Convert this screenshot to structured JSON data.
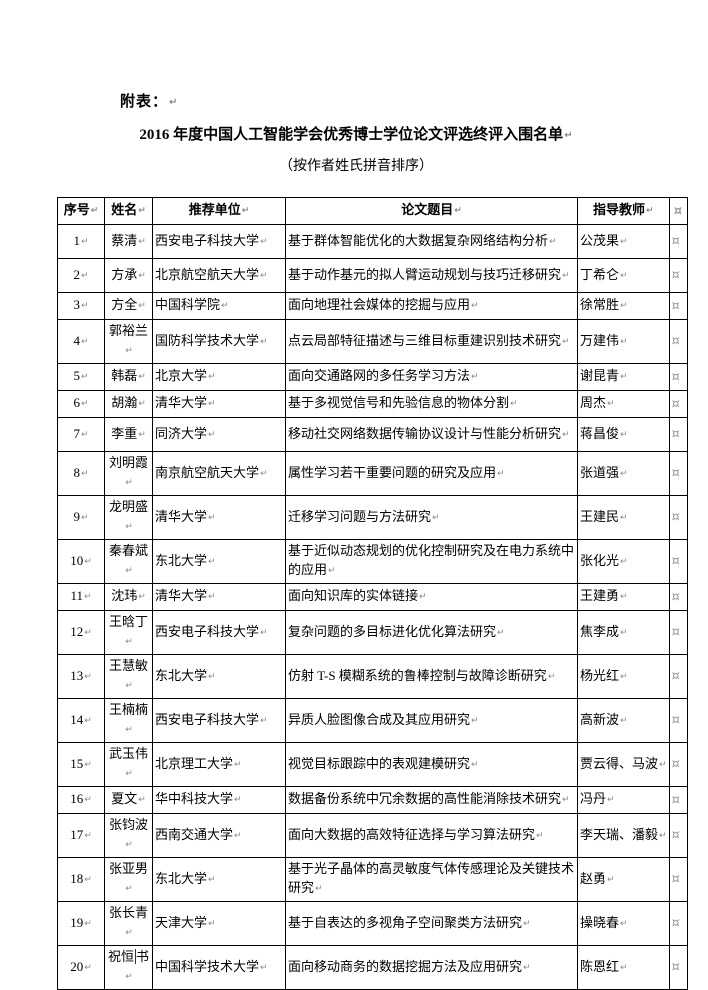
{
  "page": {
    "appendix_label": "附表：",
    "title": "2016 年度中国人工智能学会优秀博士学位论文评选终评入围名单",
    "subtitle": "（按作者姓氏拼音排序）"
  },
  "marks": {
    "pilcrow": "↵",
    "row_end": "¤"
  },
  "table": {
    "columns": [
      "序号",
      "姓名",
      "推荐单位",
      "论文题目",
      "指导教师"
    ],
    "rows": [
      {
        "no": "1",
        "name": "蔡清",
        "unit": "西安电子科技大学",
        "title": "基于群体智能优化的大数据复杂网络结构分析",
        "advisor": "公茂果"
      },
      {
        "no": "2",
        "name": "方承",
        "unit": "北京航空航天大学",
        "title": "基于动作基元的拟人臂运动规划与技巧迁移研究",
        "advisor": "丁希仑"
      },
      {
        "no": "3",
        "name": "方全",
        "unit": "中国科学院",
        "title": "面向地理社会媒体的挖掘与应用",
        "advisor": "徐常胜"
      },
      {
        "no": "4",
        "name": "郭裕兰",
        "unit": "国防科学技术大学",
        "title": "点云局部特征描述与三维目标重建识别技术研究",
        "advisor": "万建伟"
      },
      {
        "no": "5",
        "name": "韩磊",
        "unit": "北京大学",
        "title": "面向交通路网的多任务学习方法",
        "advisor": "谢昆青"
      },
      {
        "no": "6",
        "name": "胡瀚",
        "unit": "清华大学",
        "title": "基于多视觉信号和先验信息的物体分割",
        "advisor": "周杰"
      },
      {
        "no": "7",
        "name": "李重",
        "unit": "同济大学",
        "title": "移动社交网络数据传输协议设计与性能分析研究",
        "advisor": "蒋昌俊"
      },
      {
        "no": "8",
        "name": "刘明霞",
        "unit": "南京航空航天大学",
        "title": "属性学习若干重要问题的研究及应用",
        "advisor": "张道强"
      },
      {
        "no": "9",
        "name": "龙明盛",
        "unit": "清华大学",
        "title": "迁移学习问题与方法研究",
        "advisor": "王建民"
      },
      {
        "no": "10",
        "name": "秦春斌",
        "unit": "东北大学",
        "title": "基于近似动态规划的优化控制研究及在电力系统中的应用",
        "advisor": "张化光"
      },
      {
        "no": "11",
        "name": "沈玮",
        "unit": "清华大学",
        "title": "面向知识库的实体链接",
        "advisor": "王建勇"
      },
      {
        "no": "12",
        "name": "王晗丁",
        "unit": "西安电子科技大学",
        "title": "复杂问题的多目标进化优化算法研究",
        "advisor": "焦李成"
      },
      {
        "no": "13",
        "name": "王慧敏",
        "unit": "东北大学",
        "title": "仿射 T-S 模糊系统的鲁棒控制与故障诊断研究",
        "advisor": "杨光红"
      },
      {
        "no": "14",
        "name": "王楠楠",
        "unit": "西安电子科技大学",
        "title": "异质人脸图像合成及其应用研究",
        "advisor": "高新波"
      },
      {
        "no": "15",
        "name": "武玉伟",
        "unit": "北京理工大学",
        "title": "视觉目标跟踪中的表观建模研究",
        "advisor": "贾云得、马波"
      },
      {
        "no": "16",
        "name": "夏文",
        "unit": "华中科技大学",
        "title": "数据备份系统中冗余数据的高性能消除技术研究",
        "advisor": "冯丹"
      },
      {
        "no": "17",
        "name": "张钧波",
        "unit": "西南交通大学",
        "title": "面向大数据的高效特征选择与学习算法研究",
        "advisor": "李天瑞、潘毅"
      },
      {
        "no": "18",
        "name": "张亚男",
        "unit": "东北大学",
        "title": "基于光子晶体的高灵敏度气体传感理论及关键技术研究",
        "advisor": "赵勇"
      },
      {
        "no": "19",
        "name": "张长青",
        "unit": "天津大学",
        "title": "基于自表达的多视角子空间聚类方法研究",
        "advisor": "操晓春"
      },
      {
        "no": "20",
        "name": "祝恒书",
        "unit": "中国科学技术大学",
        "title": "面向移动商务的数据挖掘方法及应用研究",
        "advisor": "陈恩红",
        "has_cursor": true
      }
    ]
  }
}
